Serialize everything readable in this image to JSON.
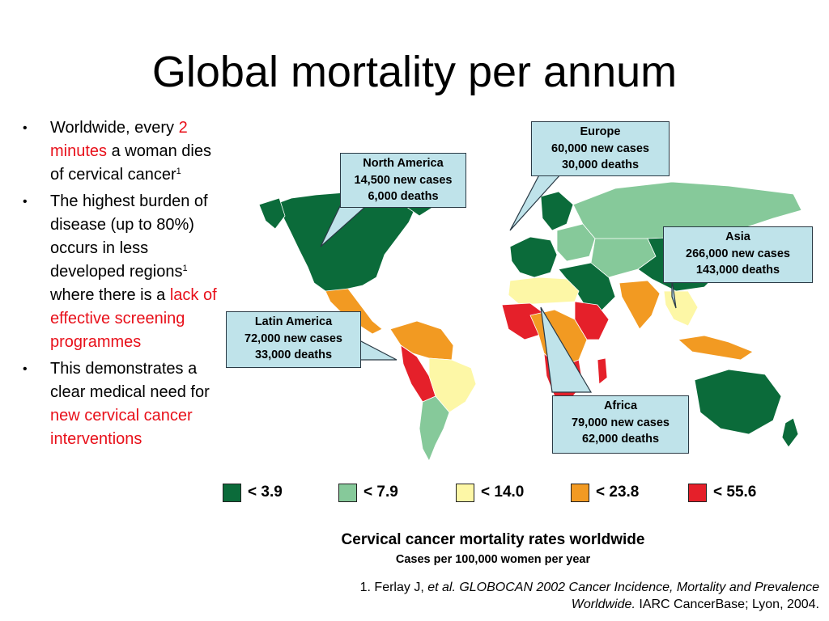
{
  "title": "Global mortality per annum",
  "bullets": [
    {
      "parts": [
        {
          "text": "Worldwide, every "
        },
        {
          "text": "2 minutes",
          "red": true
        },
        {
          "text": " a woman dies of cervical cancer"
        },
        {
          "text": "1",
          "sup": true
        }
      ]
    },
    {
      "parts": [
        {
          "text": "The highest burden of disease (up to 80%) occurs in less developed regions"
        },
        {
          "text": "1",
          "sup": true
        },
        {
          "text": " where there is a "
        },
        {
          "text": "lack of effective screening programmes",
          "red": true
        }
      ]
    },
    {
      "parts": [
        {
          "text": "This demonstrates a clear medical need for "
        },
        {
          "text": "new cervical cancer interventions",
          "red": true
        }
      ]
    }
  ],
  "callouts": {
    "europe": {
      "region": "Europe",
      "cases": "60,000 new cases",
      "deaths": "30,000 deaths"
    },
    "north_america": {
      "region": "North America",
      "cases": "14,500 new cases",
      "deaths": "6,000 deaths"
    },
    "asia": {
      "region": "Asia",
      "cases": "266,000 new cases",
      "deaths": "143,000 deaths"
    },
    "latin_america": {
      "region": "Latin America",
      "cases": "72,000 new cases",
      "deaths": "33,000 deaths"
    },
    "africa": {
      "region": "Africa",
      "cases": "79,000 new cases",
      "deaths": "62,000 deaths"
    }
  },
  "legend": [
    {
      "label": "< 3.9",
      "color": "#0b6b3a"
    },
    {
      "label": "< 7.9",
      "color": "#86c99a"
    },
    {
      "label": "< 14.0",
      "color": "#fdf7a6"
    },
    {
      "label": "< 23.8",
      "color": "#f29a22"
    },
    {
      "label": "< 55.6",
      "color": "#e5202a"
    }
  ],
  "caption": {
    "title": "Cervical cancer mortality rates worldwide",
    "subtitle": "Cases per 100,000 women per year"
  },
  "reference": {
    "prefix": "1. Ferlay J, ",
    "etal": "et al.",
    "work": " GLOBOCAN 2002 Cancer Incidence, Mortality and Prevalence Worldwide.",
    "suffix": " IARC CancerBase; Lyon, 2004."
  }
}
